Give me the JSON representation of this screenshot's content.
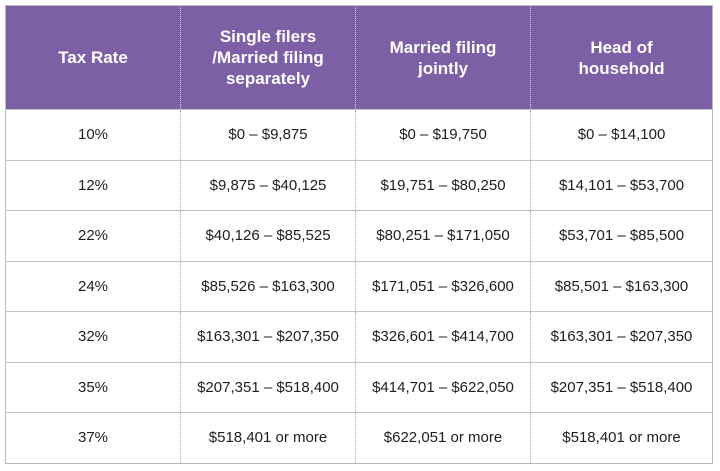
{
  "table": {
    "header": [
      [
        "Tax Rate"
      ],
      [
        "Single filers",
        "/Married filing",
        "separately"
      ],
      [
        "Married filing",
        "jointly"
      ],
      [
        "Head of",
        "household"
      ]
    ],
    "rows": [
      [
        "10%",
        "$0 – $9,875",
        "$0 – $19,750",
        "$0 – $14,100"
      ],
      [
        "12%",
        "$9,875 – $40,125",
        "$19,751 – $80,250",
        "$14,101 – $53,700"
      ],
      [
        "22%",
        "$40,126 – $85,525",
        "$80,251 – $171,050",
        "$53,701 – $85,500"
      ],
      [
        "24%",
        "$85,526 – $163,300",
        "$171,051 – $326,600",
        "$85,501 – $163,300"
      ],
      [
        "32%",
        "$163,301 – $207,350",
        "$326,601 – $414,700",
        "$163,301 – $207,350"
      ],
      [
        "35%",
        "$207,351 – $518,400",
        "$414,701 – $622,050",
        "$207,351 – $518,400"
      ],
      [
        "37%",
        "$518,401 or more",
        "$622,051 or more",
        "$518,401 or more"
      ]
    ]
  }
}
